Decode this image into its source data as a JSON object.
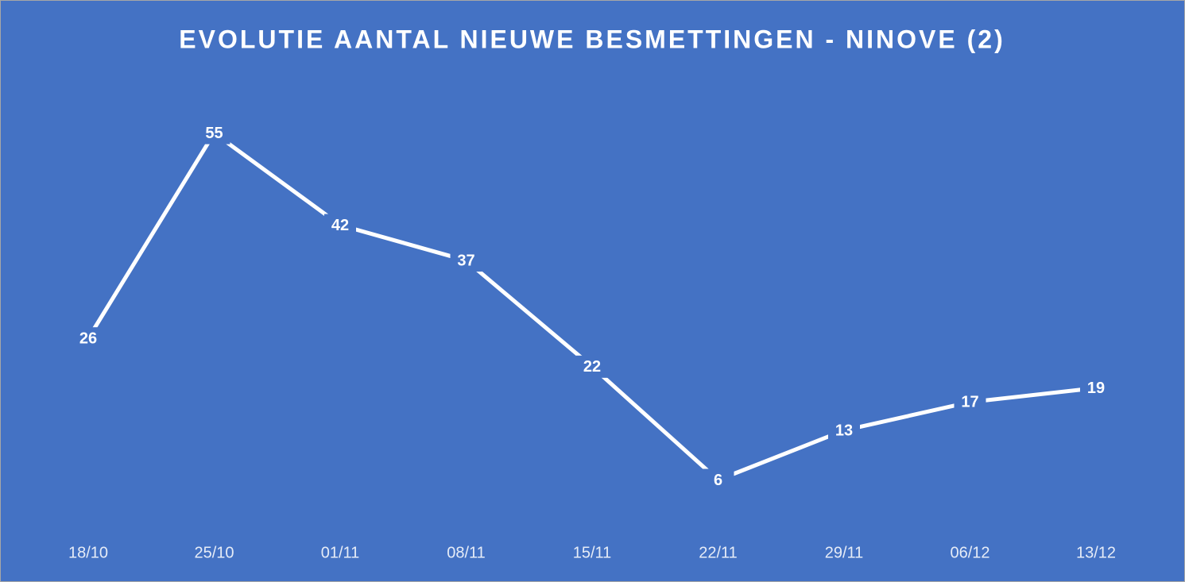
{
  "chart_data": {
    "type": "line",
    "title": "EVOLUTIE  AANTAL NIEUWE BESMETTINGEN  - NINOVE (2)",
    "categories": [
      "18/10",
      "25/10",
      "01/11",
      "08/11",
      "15/11",
      "22/11",
      "29/11",
      "06/12",
      "13/12"
    ],
    "values": [
      26,
      55,
      42,
      37,
      22,
      6,
      13,
      17,
      19
    ],
    "color": "#ffffff",
    "background": "#4472c4",
    "ylim": [
      0,
      60
    ],
    "drop_lines": true
  }
}
